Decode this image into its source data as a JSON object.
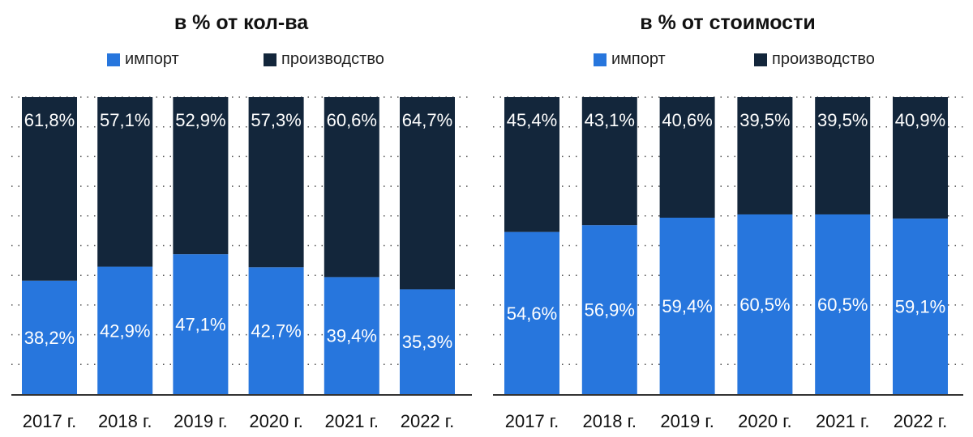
{
  "colors": {
    "import": "#2776dd",
    "production": "#13263b"
  },
  "chart_data": [
    {
      "type": "bar",
      "stacked": true,
      "title": "в % от кол-ва",
      "categories": [
        "2017 г.",
        "2018 г.",
        "2019 г.",
        "2020 г.",
        "2021 г.",
        "2022 г."
      ],
      "series": [
        {
          "name": "импорт",
          "values": [
            38.2,
            42.9,
            47.1,
            42.7,
            39.4,
            35.3
          ],
          "labels": [
            "38,2%",
            "42,9%",
            "47,1%",
            "42,7%",
            "39,4%",
            "35,3%"
          ]
        },
        {
          "name": "производство",
          "values": [
            61.8,
            57.1,
            52.9,
            57.3,
            60.6,
            64.7
          ],
          "labels": [
            "61,8%",
            "57,1%",
            "52,9%",
            "57,3%",
            "60,6%",
            "64,7%"
          ]
        }
      ],
      "ylim": [
        0,
        100
      ],
      "grid": true,
      "legend": "top"
    },
    {
      "type": "bar",
      "stacked": true,
      "title": "в % от стоимости",
      "categories": [
        "2017 г.",
        "2018 г.",
        "2019 г.",
        "2020 г.",
        "2021 г.",
        "2022 г."
      ],
      "series": [
        {
          "name": "импорт",
          "values": [
            54.6,
            56.9,
            59.4,
            60.5,
            60.5,
            59.1
          ],
          "labels": [
            "54,6%",
            "56,9%",
            "59,4%",
            "60,5%",
            "60,5%",
            "59,1%"
          ]
        },
        {
          "name": "производство",
          "values": [
            45.4,
            43.1,
            40.6,
            39.5,
            39.5,
            40.9
          ],
          "labels": [
            "45,4%",
            "43,1%",
            "40,6%",
            "39,5%",
            "39,5%",
            "40,9%"
          ]
        }
      ],
      "ylim": [
        0,
        100
      ],
      "grid": true,
      "legend": "top"
    }
  ]
}
